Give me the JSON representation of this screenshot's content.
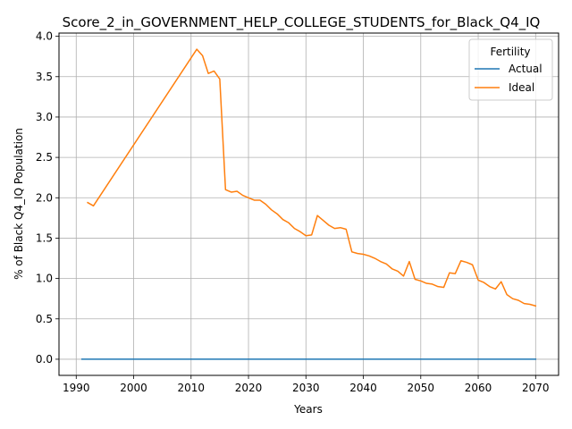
{
  "chart_data": {
    "type": "line",
    "title": "Score_2_in_GOVERNMENT_HELP_COLLEGE_STUDENTS_for_Black_Q4_IQ",
    "xlabel": "Years",
    "ylabel": "% of Black Q4_IQ Population",
    "xlim": [
      1987,
      2074
    ],
    "ylim": [
      -0.2,
      4.04
    ],
    "xticks": [
      1990,
      2000,
      2010,
      2020,
      2030,
      2040,
      2050,
      2060,
      2070
    ],
    "yticks": [
      0.0,
      0.5,
      1.0,
      1.5,
      2.0,
      2.5,
      3.0,
      3.5,
      4.0
    ],
    "xtick_labels": [
      "1990",
      "2000",
      "2010",
      "2020",
      "2030",
      "2040",
      "2050",
      "2060",
      "2070"
    ],
    "ytick_labels": [
      "0.0",
      "0.5",
      "1.0",
      "1.5",
      "2.0",
      "2.5",
      "3.0",
      "3.5",
      "4.0"
    ],
    "grid": true,
    "legend": {
      "title": "Fertility",
      "placement": "top-right"
    },
    "series": [
      {
        "name": "Actual",
        "color": "#1f77b4",
        "x": [
          1991,
          2070
        ],
        "y": [
          0.0,
          0.0
        ]
      },
      {
        "name": "Ideal",
        "color": "#ff7f0e",
        "x": [
          1992,
          1993,
          2011,
          2012,
          2013,
          2014,
          2015,
          2016,
          2017,
          2018,
          2019,
          2020,
          2021,
          2022,
          2023,
          2024,
          2025,
          2026,
          2027,
          2028,
          2029,
          2030,
          2031,
          2032,
          2033,
          2034,
          2035,
          2036,
          2037,
          2038,
          2039,
          2040,
          2041,
          2042,
          2043,
          2044,
          2045,
          2046,
          2047,
          2048,
          2049,
          2050,
          2051,
          2052,
          2053,
          2054,
          2055,
          2056,
          2057,
          2058,
          2059,
          2060,
          2061,
          2062,
          2063,
          2064,
          2065,
          2066,
          2067,
          2068,
          2069,
          2070
        ],
        "y": [
          1.94,
          1.9,
          3.84,
          3.76,
          3.54,
          3.57,
          3.47,
          2.1,
          2.07,
          2.08,
          2.03,
          2.0,
          1.97,
          1.97,
          1.92,
          1.85,
          1.8,
          1.73,
          1.69,
          1.62,
          1.58,
          1.53,
          1.54,
          1.78,
          1.72,
          1.66,
          1.62,
          1.63,
          1.61,
          1.33,
          1.31,
          1.3,
          1.28,
          1.25,
          1.21,
          1.18,
          1.12,
          1.09,
          1.03,
          1.21,
          0.99,
          0.97,
          0.94,
          0.93,
          0.9,
          0.89,
          1.07,
          1.06,
          1.22,
          1.2,
          1.17,
          0.98,
          0.95,
          0.9,
          0.87,
          0.96,
          0.8,
          0.75,
          0.73,
          0.69,
          0.68,
          0.66
        ]
      }
    ]
  }
}
